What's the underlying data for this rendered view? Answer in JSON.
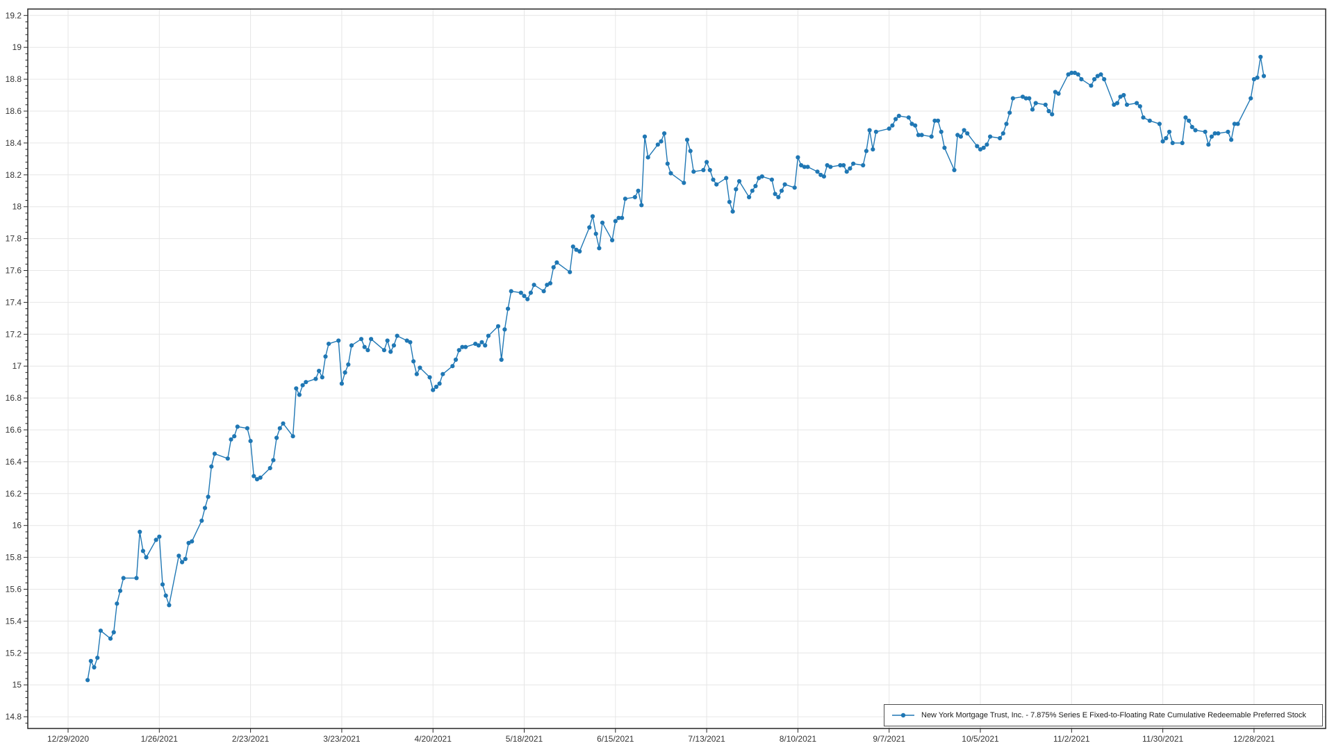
{
  "chart_data": {
    "type": "line",
    "title": "",
    "xlabel": "",
    "ylabel": "",
    "grid": true,
    "legend_position": "lower-right",
    "ylim": [
      14.72,
      19.24
    ],
    "x_axis": {
      "anchor_tick": "12/29/2020",
      "tick_interval_days": 28,
      "tick_labels": [
        "12/29/2020",
        "1/26/2021",
        "2/23/2021",
        "3/23/2021",
        "4/20/2021",
        "5/18/2021",
        "6/15/2021",
        "7/13/2021",
        "8/10/2021",
        "9/7/2021",
        "10/5/2021",
        "11/2/2021",
        "11/30/2021",
        "12/28/2021"
      ]
    },
    "y_axis": {
      "tick_values": [
        14.8,
        15,
        15.2,
        15.4,
        15.6,
        15.8,
        16,
        16.2,
        16.4,
        16.6,
        16.8,
        17,
        17.2,
        17.4,
        17.6,
        17.8,
        18,
        18.2,
        18.4,
        18.6,
        18.8,
        19,
        19.2
      ],
      "tick_labels": [
        "14.8",
        "15",
        "15.2",
        "15.4",
        "15.6",
        "15.8",
        "16",
        "16.2",
        "16.4",
        "16.6",
        "16.8",
        "17",
        "17.2",
        "17.4",
        "17.6",
        "17.8",
        "18",
        "18.2",
        "18.4",
        "18.6",
        "18.8",
        "19",
        "19.2"
      ],
      "minor_ticks_per_interval": 4
    },
    "colors": {
      "line": "#1f77b4",
      "marker": "#1f77b4",
      "grid": "#e6e6e6",
      "frame": "#262626",
      "tick_text": "#333333",
      "background": "#ffffff"
    },
    "series": [
      {
        "name": "New York Mortgage Trust, Inc. - 7.875% Series E Fixed-to-Floating Rate Cumulative Redeemable Preferred Stock",
        "color": "#1f77b4",
        "points": [
          [
            "1/4/2021",
            15.03
          ],
          [
            "1/5/2021",
            15.15
          ],
          [
            "1/6/2021",
            15.11
          ],
          [
            "1/7/2021",
            15.17
          ],
          [
            "1/8/2021",
            15.34
          ],
          [
            "1/11/2021",
            15.29
          ],
          [
            "1/12/2021",
            15.33
          ],
          [
            "1/13/2021",
            15.51
          ],
          [
            "1/14/2021",
            15.59
          ],
          [
            "1/15/2021",
            15.67
          ],
          [
            "1/19/2021",
            15.67
          ],
          [
            "1/20/2021",
            15.96
          ],
          [
            "1/21/2021",
            15.84
          ],
          [
            "1/22/2021",
            15.8
          ],
          [
            "1/25/2021",
            15.91
          ],
          [
            "1/26/2021",
            15.93
          ],
          [
            "1/27/2021",
            15.63
          ],
          [
            "1/28/2021",
            15.56
          ],
          [
            "1/29/2021",
            15.5
          ],
          [
            "2/1/2021",
            15.81
          ],
          [
            "2/2/2021",
            15.77
          ],
          [
            "2/3/2021",
            15.79
          ],
          [
            "2/4/2021",
            15.89
          ],
          [
            "2/5/2021",
            15.9
          ],
          [
            "2/8/2021",
            16.03
          ],
          [
            "2/9/2021",
            16.11
          ],
          [
            "2/10/2021",
            16.18
          ],
          [
            "2/11/2021",
            16.37
          ],
          [
            "2/12/2021",
            16.45
          ],
          [
            "2/16/2021",
            16.42
          ],
          [
            "2/17/2021",
            16.54
          ],
          [
            "2/18/2021",
            16.56
          ],
          [
            "2/19/2021",
            16.62
          ],
          [
            "2/22/2021",
            16.61
          ],
          [
            "2/23/2021",
            16.53
          ],
          [
            "2/24/2021",
            16.31
          ],
          [
            "2/25/2021",
            16.29
          ],
          [
            "2/26/2021",
            16.3
          ],
          [
            "3/1/2021",
            16.36
          ],
          [
            "3/2/2021",
            16.41
          ],
          [
            "3/3/2021",
            16.55
          ],
          [
            "3/4/2021",
            16.61
          ],
          [
            "3/5/2021",
            16.64
          ],
          [
            "3/8/2021",
            16.56
          ],
          [
            "3/9/2021",
            16.86
          ],
          [
            "3/10/2021",
            16.82
          ],
          [
            "3/11/2021",
            16.88
          ],
          [
            "3/12/2021",
            16.9
          ],
          [
            "3/15/2021",
            16.92
          ],
          [
            "3/16/2021",
            16.97
          ],
          [
            "3/17/2021",
            16.93
          ],
          [
            "3/18/2021",
            17.06
          ],
          [
            "3/19/2021",
            17.14
          ],
          [
            "3/22/2021",
            17.16
          ],
          [
            "3/23/2021",
            16.89
          ],
          [
            "3/24/2021",
            16.96
          ],
          [
            "3/25/2021",
            17.01
          ],
          [
            "3/26/2021",
            17.13
          ],
          [
            "3/29/2021",
            17.17
          ],
          [
            "3/30/2021",
            17.12
          ],
          [
            "3/31/2021",
            17.1
          ],
          [
            "4/1/2021",
            17.17
          ],
          [
            "4/5/2021",
            17.1
          ],
          [
            "4/6/2021",
            17.16
          ],
          [
            "4/7/2021",
            17.09
          ],
          [
            "4/8/2021",
            17.13
          ],
          [
            "4/9/2021",
            17.19
          ],
          [
            "4/12/2021",
            17.16
          ],
          [
            "4/13/2021",
            17.15
          ],
          [
            "4/14/2021",
            17.03
          ],
          [
            "4/15/2021",
            16.95
          ],
          [
            "4/16/2021",
            16.99
          ],
          [
            "4/19/2021",
            16.93
          ],
          [
            "4/20/2021",
            16.85
          ],
          [
            "4/21/2021",
            16.87
          ],
          [
            "4/22/2021",
            16.89
          ],
          [
            "4/23/2021",
            16.95
          ],
          [
            "4/26/2021",
            17.0
          ],
          [
            "4/27/2021",
            17.04
          ],
          [
            "4/28/2021",
            17.1
          ],
          [
            "4/29/2021",
            17.12
          ],
          [
            "4/30/2021",
            17.12
          ],
          [
            "5/3/2021",
            17.14
          ],
          [
            "5/4/2021",
            17.13
          ],
          [
            "5/5/2021",
            17.15
          ],
          [
            "5/6/2021",
            17.13
          ],
          [
            "5/7/2021",
            17.19
          ],
          [
            "5/10/2021",
            17.25
          ],
          [
            "5/11/2021",
            17.04
          ],
          [
            "5/12/2021",
            17.23
          ],
          [
            "5/13/2021",
            17.36
          ],
          [
            "5/14/2021",
            17.47
          ],
          [
            "5/17/2021",
            17.46
          ],
          [
            "5/18/2021",
            17.44
          ],
          [
            "5/19/2021",
            17.42
          ],
          [
            "5/20/2021",
            17.46
          ],
          [
            "5/21/2021",
            17.51
          ],
          [
            "5/24/2021",
            17.47
          ],
          [
            "5/25/2021",
            17.51
          ],
          [
            "5/26/2021",
            17.52
          ],
          [
            "5/27/2021",
            17.62
          ],
          [
            "5/28/2021",
            17.65
          ],
          [
            "6/1/2021",
            17.59
          ],
          [
            "6/2/2021",
            17.75
          ],
          [
            "6/3/2021",
            17.73
          ],
          [
            "6/4/2021",
            17.72
          ],
          [
            "6/7/2021",
            17.87
          ],
          [
            "6/8/2021",
            17.94
          ],
          [
            "6/9/2021",
            17.83
          ],
          [
            "6/10/2021",
            17.74
          ],
          [
            "6/11/2021",
            17.9
          ],
          [
            "6/14/2021",
            17.79
          ],
          [
            "6/15/2021",
            17.91
          ],
          [
            "6/16/2021",
            17.93
          ],
          [
            "6/17/2021",
            17.93
          ],
          [
            "6/18/2021",
            18.05
          ],
          [
            "6/21/2021",
            18.06
          ],
          [
            "6/22/2021",
            18.1
          ],
          [
            "6/23/2021",
            18.01
          ],
          [
            "6/24/2021",
            18.44
          ],
          [
            "6/25/2021",
            18.31
          ],
          [
            "6/28/2021",
            18.39
          ],
          [
            "6/29/2021",
            18.41
          ],
          [
            "6/30/2021",
            18.46
          ],
          [
            "7/1/2021",
            18.27
          ],
          [
            "7/2/2021",
            18.21
          ],
          [
            "7/6/2021",
            18.15
          ],
          [
            "7/7/2021",
            18.42
          ],
          [
            "7/8/2021",
            18.35
          ],
          [
            "7/9/2021",
            18.22
          ],
          [
            "7/12/2021",
            18.23
          ],
          [
            "7/13/2021",
            18.28
          ],
          [
            "7/14/2021",
            18.23
          ],
          [
            "7/15/2021",
            18.17
          ],
          [
            "7/16/2021",
            18.14
          ],
          [
            "7/19/2021",
            18.18
          ],
          [
            "7/20/2021",
            18.03
          ],
          [
            "7/21/2021",
            17.97
          ],
          [
            "7/22/2021",
            18.11
          ],
          [
            "7/23/2021",
            18.16
          ],
          [
            "7/26/2021",
            18.06
          ],
          [
            "7/27/2021",
            18.1
          ],
          [
            "7/28/2021",
            18.13
          ],
          [
            "7/29/2021",
            18.18
          ],
          [
            "7/30/2021",
            18.19
          ],
          [
            "8/2/2021",
            18.17
          ],
          [
            "8/3/2021",
            18.08
          ],
          [
            "8/4/2021",
            18.06
          ],
          [
            "8/5/2021",
            18.1
          ],
          [
            "8/6/2021",
            18.14
          ],
          [
            "8/9/2021",
            18.12
          ],
          [
            "8/10/2021",
            18.31
          ],
          [
            "8/11/2021",
            18.26
          ],
          [
            "8/12/2021",
            18.25
          ],
          [
            "8/13/2021",
            18.25
          ],
          [
            "8/16/2021",
            18.22
          ],
          [
            "8/17/2021",
            18.2
          ],
          [
            "8/18/2021",
            18.19
          ],
          [
            "8/19/2021",
            18.26
          ],
          [
            "8/20/2021",
            18.25
          ],
          [
            "8/23/2021",
            18.26
          ],
          [
            "8/24/2021",
            18.26
          ],
          [
            "8/25/2021",
            18.22
          ],
          [
            "8/26/2021",
            18.24
          ],
          [
            "8/27/2021",
            18.27
          ],
          [
            "8/30/2021",
            18.26
          ],
          [
            "8/31/2021",
            18.35
          ],
          [
            "9/1/2021",
            18.48
          ],
          [
            "9/2/2021",
            18.36
          ],
          [
            "9/3/2021",
            18.47
          ],
          [
            "9/7/2021",
            18.49
          ],
          [
            "9/8/2021",
            18.51
          ],
          [
            "9/9/2021",
            18.55
          ],
          [
            "9/10/2021",
            18.57
          ],
          [
            "9/13/2021",
            18.56
          ],
          [
            "9/14/2021",
            18.52
          ],
          [
            "9/15/2021",
            18.51
          ],
          [
            "9/16/2021",
            18.45
          ],
          [
            "9/17/2021",
            18.45
          ],
          [
            "9/20/2021",
            18.44
          ],
          [
            "9/21/2021",
            18.54
          ],
          [
            "9/22/2021",
            18.54
          ],
          [
            "9/23/2021",
            18.47
          ],
          [
            "9/24/2021",
            18.37
          ],
          [
            "9/27/2021",
            18.23
          ],
          [
            "9/28/2021",
            18.45
          ],
          [
            "9/29/2021",
            18.44
          ],
          [
            "9/30/2021",
            18.48
          ],
          [
            "10/1/2021",
            18.46
          ],
          [
            "10/4/2021",
            18.38
          ],
          [
            "10/5/2021",
            18.36
          ],
          [
            "10/6/2021",
            18.37
          ],
          [
            "10/7/2021",
            18.39
          ],
          [
            "10/8/2021",
            18.44
          ],
          [
            "10/11/2021",
            18.43
          ],
          [
            "10/12/2021",
            18.46
          ],
          [
            "10/13/2021",
            18.52
          ],
          [
            "10/14/2021",
            18.59
          ],
          [
            "10/15/2021",
            18.68
          ],
          [
            "10/18/2021",
            18.69
          ],
          [
            "10/19/2021",
            18.68
          ],
          [
            "10/20/2021",
            18.68
          ],
          [
            "10/21/2021",
            18.61
          ],
          [
            "10/22/2021",
            18.65
          ],
          [
            "10/25/2021",
            18.64
          ],
          [
            "10/26/2021",
            18.6
          ],
          [
            "10/27/2021",
            18.58
          ],
          [
            "10/28/2021",
            18.72
          ],
          [
            "10/29/2021",
            18.71
          ],
          [
            "11/1/2021",
            18.83
          ],
          [
            "11/2/2021",
            18.84
          ],
          [
            "11/3/2021",
            18.84
          ],
          [
            "11/4/2021",
            18.83
          ],
          [
            "11/5/2021",
            18.8
          ],
          [
            "11/8/2021",
            18.76
          ],
          [
            "11/9/2021",
            18.8
          ],
          [
            "11/10/2021",
            18.82
          ],
          [
            "11/11/2021",
            18.83
          ],
          [
            "11/12/2021",
            18.8
          ],
          [
            "11/15/2021",
            18.64
          ],
          [
            "11/16/2021",
            18.65
          ],
          [
            "11/17/2021",
            18.69
          ],
          [
            "11/18/2021",
            18.7
          ],
          [
            "11/19/2021",
            18.64
          ],
          [
            "11/22/2021",
            18.65
          ],
          [
            "11/23/2021",
            18.63
          ],
          [
            "11/24/2021",
            18.56
          ],
          [
            "11/26/2021",
            18.54
          ],
          [
            "11/29/2021",
            18.52
          ],
          [
            "11/30/2021",
            18.41
          ],
          [
            "12/1/2021",
            18.43
          ],
          [
            "12/2/2021",
            18.47
          ],
          [
            "12/3/2021",
            18.4
          ],
          [
            "12/6/2021",
            18.4
          ],
          [
            "12/7/2021",
            18.56
          ],
          [
            "12/8/2021",
            18.54
          ],
          [
            "12/9/2021",
            18.5
          ],
          [
            "12/10/2021",
            18.48
          ],
          [
            "12/13/2021",
            18.47
          ],
          [
            "12/14/2021",
            18.39
          ],
          [
            "12/15/2021",
            18.44
          ],
          [
            "12/16/2021",
            18.46
          ],
          [
            "12/17/2021",
            18.46
          ],
          [
            "12/20/2021",
            18.47
          ],
          [
            "12/21/2021",
            18.42
          ],
          [
            "12/22/2021",
            18.52
          ],
          [
            "12/23/2021",
            18.52
          ],
          [
            "12/27/2021",
            18.68
          ],
          [
            "12/28/2021",
            18.8
          ],
          [
            "12/29/2021",
            18.81
          ],
          [
            "12/30/2021",
            18.94
          ],
          [
            "12/31/2021",
            18.82
          ]
        ]
      }
    ]
  }
}
